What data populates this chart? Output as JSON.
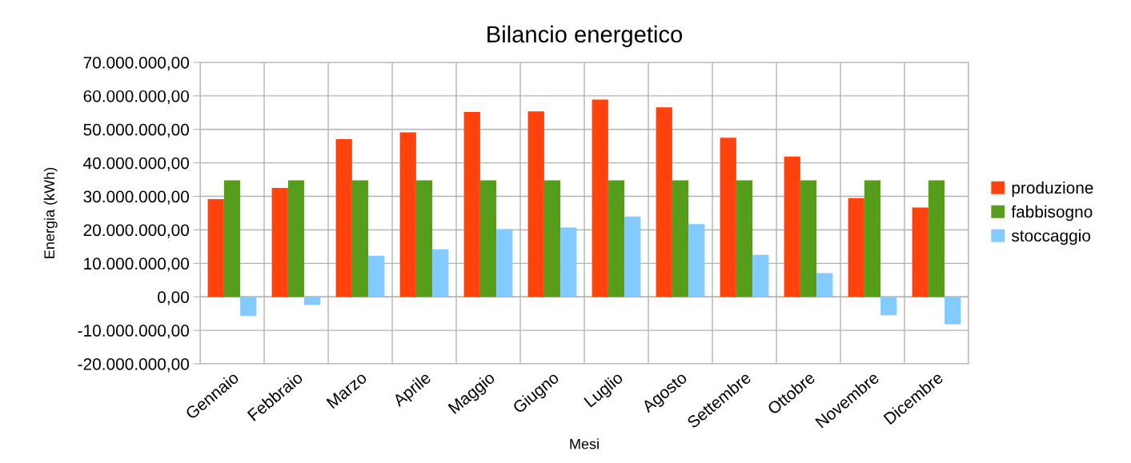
{
  "chart_data": {
    "type": "bar",
    "title": "Bilancio energetico",
    "xlabel": "Mesi",
    "ylabel": "Energia (kWh)",
    "categories": [
      "Gennaio",
      "Febbraio",
      "Marzo",
      "Aprile",
      "Maggio",
      "Giugno",
      "Luglio",
      "Agosto",
      "Settembre",
      "Ottobre",
      "Novembre",
      "Dicembre"
    ],
    "series": [
      {
        "name": "produzione",
        "color": "#ff420e",
        "values": [
          29200000,
          32500000,
          47100000,
          49100000,
          55200000,
          55400000,
          58900000,
          56600000,
          47500000,
          41900000,
          29500000,
          26700000
        ]
      },
      {
        "name": "fabbisogno",
        "color": "#579d1c",
        "values": [
          34800000,
          34800000,
          34800000,
          34800000,
          34800000,
          34800000,
          34800000,
          34800000,
          34800000,
          34800000,
          34800000,
          34800000
        ]
      },
      {
        "name": "stoccaggio",
        "color": "#83caff",
        "values": [
          -5700000,
          -2400000,
          12300000,
          14200000,
          20200000,
          20700000,
          24000000,
          21700000,
          12500000,
          7100000,
          -5500000,
          -8200000
        ]
      }
    ],
    "ylim": [
      -20000000,
      70000000
    ],
    "yticks": [
      {
        "value": -20000000,
        "label": "-20.000.000,00"
      },
      {
        "value": -10000000,
        "label": "-10.000.000,00"
      },
      {
        "value": 0,
        "label": "0,00"
      },
      {
        "value": 10000000,
        "label": "10.000.000,00"
      },
      {
        "value": 20000000,
        "label": "20.000.000,00"
      },
      {
        "value": 30000000,
        "label": "30.000.000,00"
      },
      {
        "value": 40000000,
        "label": "40.000.000,00"
      },
      {
        "value": 50000000,
        "label": "50.000.000,00"
      },
      {
        "value": 60000000,
        "label": "60.000.000,00"
      },
      {
        "value": 70000000,
        "label": "70.000.000,00"
      }
    ],
    "grid": true,
    "legend": "right"
  }
}
